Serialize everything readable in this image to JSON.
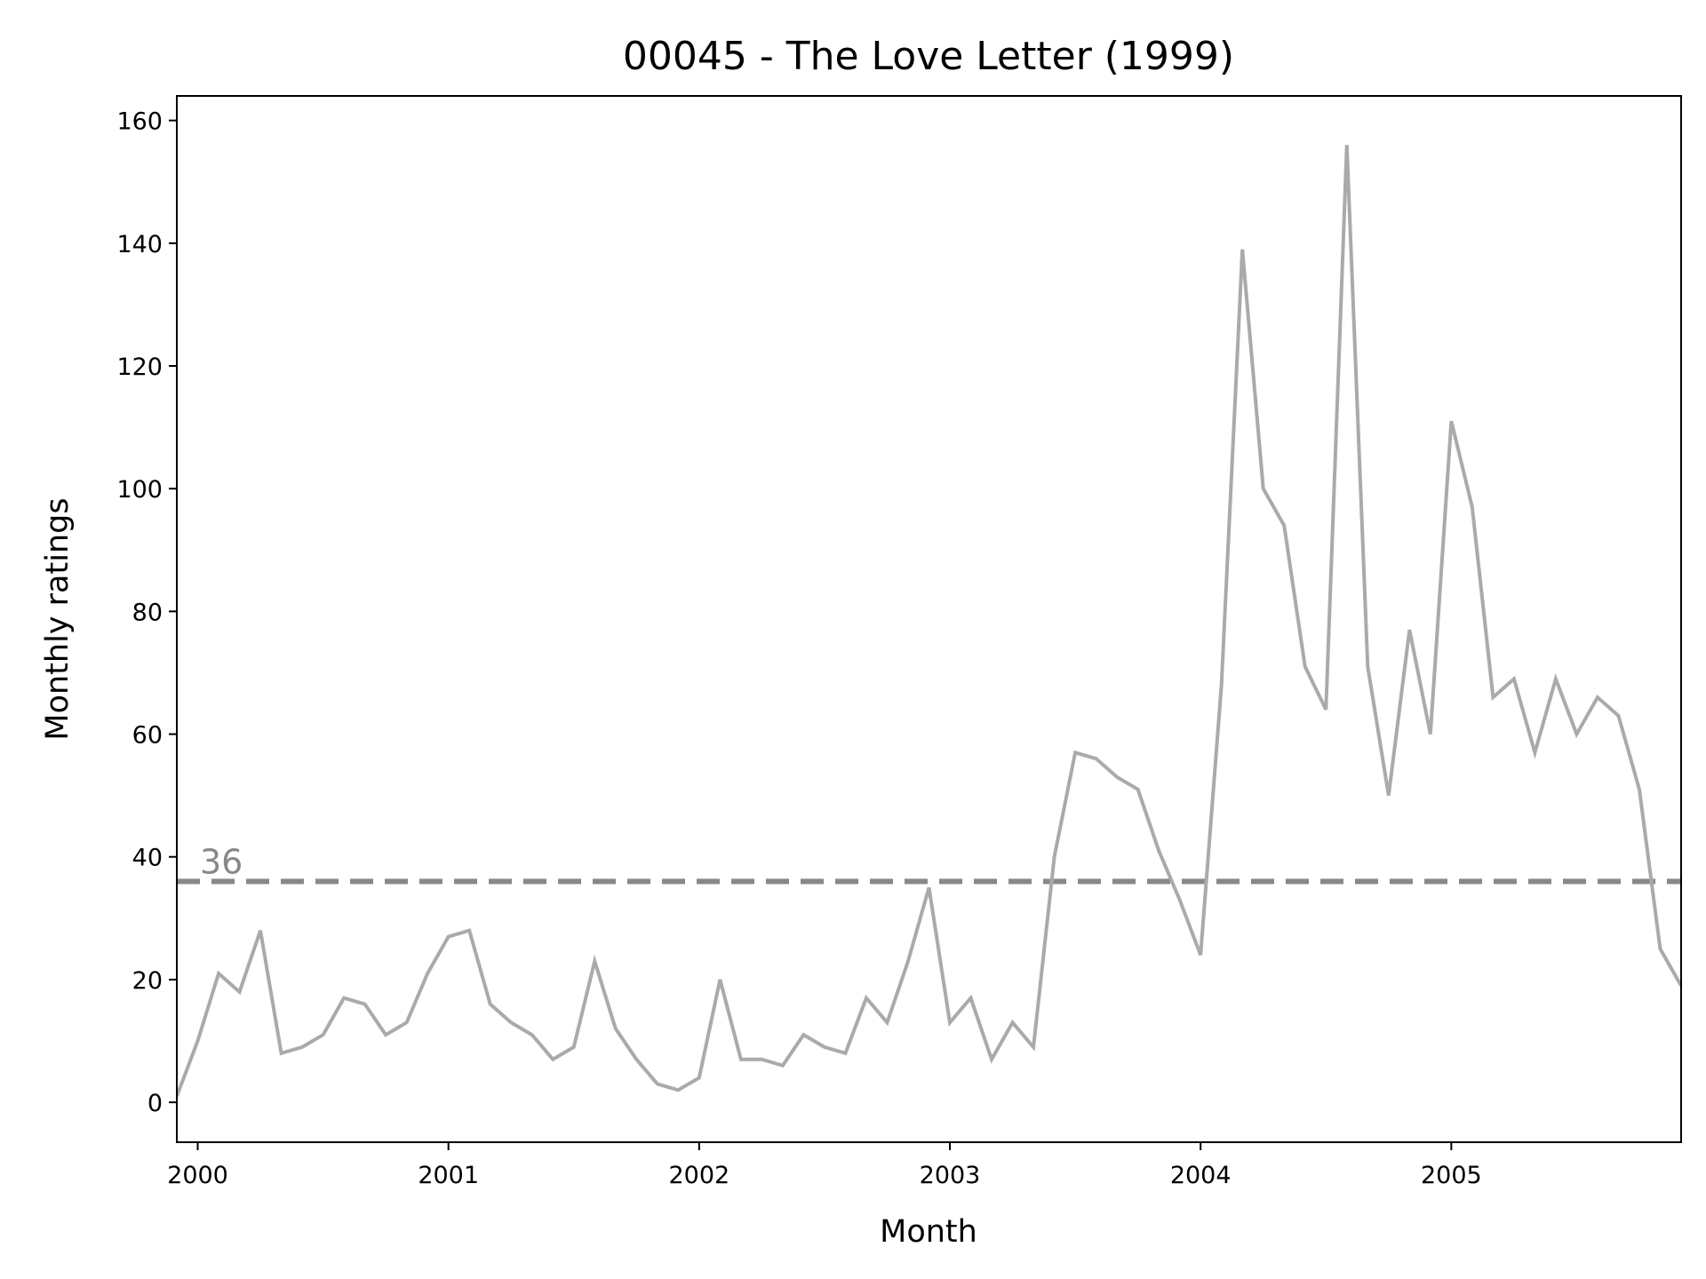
{
  "chart_data": {
    "type": "line",
    "title": "00045 - The Love Letter (1999)",
    "xlabel": "Month",
    "ylabel": "Monthly ratings",
    "x_start": "1999-12",
    "x_ticks": [
      "2000",
      "2001",
      "2002",
      "2003",
      "2004",
      "2005"
    ],
    "y_ticks": [
      "0",
      "20",
      "40",
      "60",
      "80",
      "100",
      "120",
      "140",
      "160"
    ],
    "ylim": [
      -6.5,
      164
    ],
    "xlim": [
      "1999-12",
      "2005-12"
    ],
    "grid": false,
    "series": [
      {
        "color": "#aaaaaa",
        "values": [
          1,
          10,
          21,
          18,
          28,
          8,
          9,
          11,
          17,
          16,
          11,
          13,
          21,
          27,
          28,
          16,
          13,
          11,
          7,
          9,
          23,
          12,
          7,
          3,
          2,
          4,
          20,
          7,
          7,
          6,
          11,
          9,
          8,
          17,
          13,
          23,
          35,
          13,
          17,
          7,
          13,
          9,
          40,
          57,
          56,
          53,
          51,
          41,
          33,
          24,
          68,
          139,
          100,
          94,
          71,
          64,
          156,
          71,
          50,
          77,
          60,
          111,
          97,
          66,
          69,
          57,
          69,
          60,
          66,
          63,
          51,
          25,
          19
        ]
      }
    ],
    "reference_line": {
      "value": 36,
      "label": "36",
      "color": "#888888",
      "style": "dashed"
    }
  }
}
